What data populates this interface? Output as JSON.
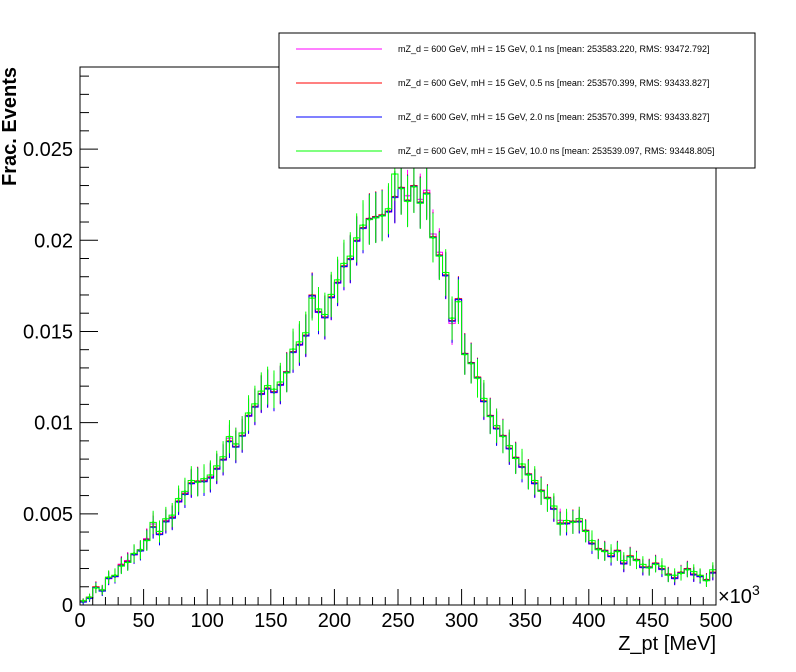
{
  "chart_data": {
    "type": "line",
    "xlabel": "Z_pt [MeV]",
    "ylabel": "Frac. Events",
    "x_multiplier_label": "×10",
    "x_multiplier_exp": "3",
    "xlim": [
      0,
      500
    ],
    "ylim": [
      0,
      0.0295
    ],
    "grid": false,
    "legend_position": "top-right",
    "x_ticks": [
      0,
      50,
      100,
      150,
      200,
      250,
      300,
      350,
      400,
      450,
      500
    ],
    "x_tick_labels": [
      "0",
      "50",
      "100",
      "150",
      "200",
      "250",
      "300",
      "350",
      "400",
      "450",
      "500"
    ],
    "y_ticks": [
      0,
      0.005,
      0.01,
      0.015,
      0.02,
      0.025
    ],
    "y_tick_labels": [
      "0",
      "0.005",
      "0.01",
      "0.015",
      "0.02",
      "0.025"
    ],
    "bin_width": 5,
    "series": [
      {
        "name": "mZ_d = 600 GeV, mH = 15 GeV, 0.1 ns [mean: 253583.220, RMS: 93472.792]",
        "color": "#ff00ff",
        "offset": 4e-05,
        "values": [
          0.0002,
          0.0004,
          0.0009,
          0.0008,
          0.0014,
          0.0015,
          0.0022,
          0.0024,
          0.0027,
          0.003,
          0.0036,
          0.0044,
          0.004,
          0.0046,
          0.0048,
          0.0056,
          0.0061,
          0.0066,
          0.0067,
          0.0068,
          0.007,
          0.0074,
          0.0079,
          0.0091,
          0.0088,
          0.0094,
          0.0103,
          0.0108,
          0.0115,
          0.0118,
          0.0116,
          0.012,
          0.0127,
          0.0138,
          0.0142,
          0.0147,
          0.0169,
          0.016,
          0.0157,
          0.0168,
          0.0176,
          0.0185,
          0.0189,
          0.0199,
          0.0206,
          0.0211,
          0.0212,
          0.0213,
          0.0215,
          0.0223,
          0.0228,
          0.0224,
          0.0229,
          0.0222,
          0.0227,
          0.0203,
          0.0193,
          0.018,
          0.0154,
          0.0167,
          0.0137,
          0.0132,
          0.0124,
          0.0111,
          0.0103,
          0.0098,
          0.0092,
          0.0087,
          0.008,
          0.0075,
          0.0071,
          0.0066,
          0.0062,
          0.0058,
          0.0052,
          0.0046,
          0.0044,
          0.0045,
          0.0047,
          0.004,
          0.0033,
          0.003,
          0.0029,
          0.0026,
          0.0029,
          0.0022,
          0.0026,
          0.0024,
          0.002,
          0.002,
          0.0022,
          0.0019,
          0.0016,
          0.0014,
          0.0017,
          0.0019,
          0.0016,
          0.0015,
          0.0013,
          0.0017
        ]
      },
      {
        "name": "mZ_d = 600 GeV, mH = 15 GeV, 0.5 ns [mean: 253570.399, RMS: 93433.827]",
        "color": "#ff0000",
        "offset": 0.0,
        "values": [
          0.0002,
          0.0004,
          0.001,
          0.0008,
          0.0015,
          0.0016,
          0.0022,
          0.0024,
          0.0028,
          0.003,
          0.0036,
          0.0043,
          0.0039,
          0.0046,
          0.0048,
          0.0057,
          0.0061,
          0.0067,
          0.0068,
          0.0068,
          0.007,
          0.0075,
          0.008,
          0.009,
          0.0087,
          0.0093,
          0.0104,
          0.0109,
          0.0116,
          0.0119,
          0.0117,
          0.0121,
          0.0128,
          0.0139,
          0.0143,
          0.0148,
          0.017,
          0.0161,
          0.0158,
          0.0169,
          0.0177,
          0.0186,
          0.019,
          0.02,
          0.0207,
          0.0212,
          0.0213,
          0.0214,
          0.0216,
          0.0224,
          0.0229,
          0.0222,
          0.023,
          0.0221,
          0.0226,
          0.0202,
          0.0192,
          0.0181,
          0.0156,
          0.0168,
          0.0138,
          0.0133,
          0.0125,
          0.0112,
          0.0104,
          0.0097,
          0.0093,
          0.0086,
          0.0081,
          0.0076,
          0.0072,
          0.0067,
          0.0063,
          0.0059,
          0.0053,
          0.0045,
          0.0045,
          0.0046,
          0.0046,
          0.0041,
          0.0034,
          0.0031,
          0.003,
          0.0027,
          0.003,
          0.0023,
          0.0027,
          0.0025,
          0.0021,
          0.0021,
          0.0023,
          0.002,
          0.0017,
          0.0015,
          0.0018,
          0.002,
          0.0017,
          0.0016,
          0.0014,
          0.0018
        ]
      },
      {
        "name": "mZ_d = 600 GeV, mH = 15 GeV, 2.0 ns [mean: 253570.399, RMS: 93433.827]",
        "color": "#0000ff",
        "offset": -4e-05,
        "values": [
          0.0002,
          0.0004,
          0.001,
          0.0008,
          0.0015,
          0.0016,
          0.0022,
          0.0024,
          0.0028,
          0.003,
          0.0036,
          0.0043,
          0.0039,
          0.0046,
          0.0048,
          0.0057,
          0.0061,
          0.0067,
          0.0068,
          0.0068,
          0.007,
          0.0075,
          0.008,
          0.009,
          0.0087,
          0.0093,
          0.0104,
          0.0109,
          0.0116,
          0.0119,
          0.0117,
          0.0121,
          0.0128,
          0.0139,
          0.0143,
          0.0148,
          0.017,
          0.0161,
          0.0158,
          0.0169,
          0.0177,
          0.0186,
          0.019,
          0.02,
          0.0207,
          0.0212,
          0.0213,
          0.0214,
          0.0216,
          0.0224,
          0.0229,
          0.0222,
          0.023,
          0.0221,
          0.0226,
          0.0202,
          0.0192,
          0.0181,
          0.0156,
          0.0168,
          0.0138,
          0.0133,
          0.0125,
          0.0112,
          0.0104,
          0.0097,
          0.0093,
          0.0086,
          0.0081,
          0.0076,
          0.0072,
          0.0067,
          0.0063,
          0.0059,
          0.0053,
          0.0045,
          0.0045,
          0.0046,
          0.0046,
          0.0041,
          0.0034,
          0.0031,
          0.003,
          0.0027,
          0.003,
          0.0023,
          0.0027,
          0.0025,
          0.0021,
          0.0021,
          0.0023,
          0.002,
          0.0017,
          0.0015,
          0.0018,
          0.002,
          0.0017,
          0.0016,
          0.0014,
          0.0018
        ]
      },
      {
        "name": "mZ_d = 600 GeV, mH = 15 GeV, 10.0 ns [mean: 253539.097, RMS: 93448.805]",
        "color": "#00ff00",
        "offset": 3e-05,
        "values": [
          0.0002,
          0.0004,
          0.0009,
          0.0008,
          0.0015,
          0.0016,
          0.0021,
          0.0023,
          0.0028,
          0.003,
          0.0035,
          0.0045,
          0.004,
          0.0047,
          0.0049,
          0.0058,
          0.0062,
          0.0068,
          0.0067,
          0.0069,
          0.0071,
          0.0076,
          0.0081,
          0.0092,
          0.0088,
          0.0094,
          0.0105,
          0.011,
          0.0117,
          0.012,
          0.0118,
          0.0122,
          0.0127,
          0.014,
          0.0144,
          0.0149,
          0.0168,
          0.0162,
          0.0159,
          0.017,
          0.0178,
          0.0187,
          0.0191,
          0.0201,
          0.0208,
          0.0211,
          0.0212,
          0.0213,
          0.0217,
          0.0236,
          0.0228,
          0.0221,
          0.0229,
          0.022,
          0.0225,
          0.0201,
          0.0191,
          0.0182,
          0.0157,
          0.0166,
          0.0137,
          0.0132,
          0.0124,
          0.0113,
          0.0103,
          0.0098,
          0.0092,
          0.0087,
          0.008,
          0.0077,
          0.0071,
          0.0068,
          0.0062,
          0.0058,
          0.0054,
          0.0044,
          0.0046,
          0.0045,
          0.0047,
          0.004,
          0.0035,
          0.003,
          0.0029,
          0.0028,
          0.0029,
          0.0024,
          0.0026,
          0.0024,
          0.0022,
          0.002,
          0.0022,
          0.0021,
          0.0016,
          0.0016,
          0.0017,
          0.0019,
          0.0018,
          0.0016,
          0.0013,
          0.0019
        ]
      }
    ]
  }
}
